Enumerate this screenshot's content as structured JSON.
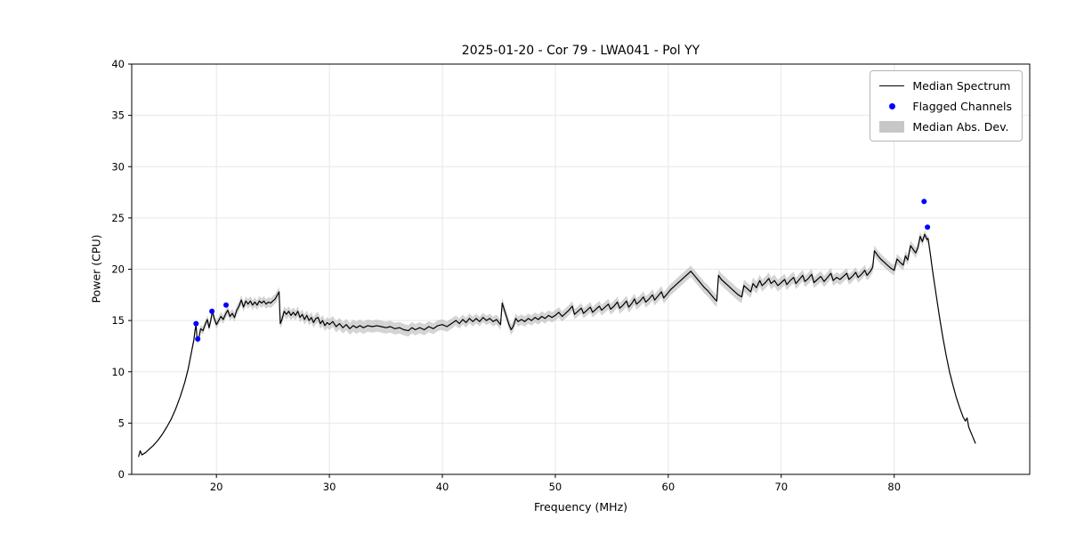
{
  "figure": {
    "background": "#ffffff"
  },
  "chart_data": {
    "type": "line",
    "title": "2025-01-20 - Cor 79 - LWA041 - Pol YY",
    "xlabel": "Frequency (MHz)",
    "ylabel": "Power (CPU)",
    "xlim": [
      12.5,
      92.0
    ],
    "ylim": [
      0,
      40
    ],
    "xticks": [
      20,
      30,
      40,
      50,
      60,
      70,
      80
    ],
    "yticks": [
      0,
      5,
      10,
      15,
      20,
      25,
      30,
      35,
      40
    ],
    "grid": true,
    "legend": {
      "position": "upper right",
      "entries": [
        {
          "label": "Median Spectrum",
          "marker": "line"
        },
        {
          "label": "Flagged Channels",
          "marker": "dot"
        },
        {
          "label": "Median Abs. Dev.",
          "marker": "patch"
        }
      ]
    },
    "colors": {
      "line": "#000000",
      "flagged": "#0000ff",
      "band": "#b8b8b8",
      "grid": "#e7e7e7"
    },
    "series": {
      "median_spectrum": [
        [
          13.1,
          1.7
        ],
        [
          13.25,
          2.3
        ],
        [
          13.4,
          1.9
        ],
        [
          13.7,
          2.1
        ],
        [
          14.0,
          2.4
        ],
        [
          14.4,
          2.8
        ],
        [
          14.8,
          3.3
        ],
        [
          15.2,
          3.9
        ],
        [
          15.6,
          4.6
        ],
        [
          16.0,
          5.4
        ],
        [
          16.4,
          6.4
        ],
        [
          16.8,
          7.6
        ],
        [
          17.2,
          9.0
        ],
        [
          17.5,
          10.3
        ],
        [
          17.8,
          12.0
        ],
        [
          18.0,
          13.1
        ],
        [
          18.1,
          14.0
        ],
        [
          18.2,
          14.6
        ],
        [
          18.3,
          13.0
        ],
        [
          18.45,
          13.3
        ],
        [
          18.6,
          14.2
        ],
        [
          18.8,
          14.0
        ],
        [
          19.0,
          14.6
        ],
        [
          19.2,
          15.1
        ],
        [
          19.35,
          14.3
        ],
        [
          19.5,
          15.0
        ],
        [
          19.65,
          15.9
        ],
        [
          19.8,
          15.2
        ],
        [
          20.0,
          14.6
        ],
        [
          20.2,
          15.0
        ],
        [
          20.4,
          15.4
        ],
        [
          20.6,
          15.1
        ],
        [
          20.8,
          15.6
        ],
        [
          21.0,
          16.0
        ],
        [
          21.2,
          15.4
        ],
        [
          21.4,
          15.7
        ],
        [
          21.6,
          15.3
        ],
        [
          21.8,
          16.0
        ],
        [
          22.0,
          16.4
        ],
        [
          22.2,
          17.0
        ],
        [
          22.4,
          16.3
        ],
        [
          22.6,
          16.9
        ],
        [
          22.8,
          16.6
        ],
        [
          23.0,
          16.9
        ],
        [
          23.2,
          16.5
        ],
        [
          23.4,
          16.8
        ],
        [
          23.6,
          16.5
        ],
        [
          23.8,
          16.9
        ],
        [
          24.0,
          16.7
        ],
        [
          24.2,
          16.9
        ],
        [
          24.4,
          16.6
        ],
        [
          24.6,
          16.8
        ],
        [
          24.8,
          16.7
        ],
        [
          25.0,
          16.9
        ],
        [
          25.2,
          17.1
        ],
        [
          25.4,
          17.5
        ],
        [
          25.55,
          17.8
        ],
        [
          25.65,
          14.7
        ],
        [
          25.8,
          15.1
        ],
        [
          26.0,
          15.9
        ],
        [
          26.2,
          15.6
        ],
        [
          26.4,
          15.9
        ],
        [
          26.6,
          15.5
        ],
        [
          26.8,
          15.8
        ],
        [
          27.0,
          15.5
        ],
        [
          27.2,
          15.9
        ],
        [
          27.4,
          15.3
        ],
        [
          27.6,
          15.6
        ],
        [
          27.8,
          15.1
        ],
        [
          28.0,
          15.5
        ],
        [
          28.2,
          15.0
        ],
        [
          28.4,
          15.3
        ],
        [
          28.6,
          14.8
        ],
        [
          28.8,
          15.2
        ],
        [
          29.0,
          15.3
        ],
        [
          29.2,
          14.7
        ],
        [
          29.4,
          15.0
        ],
        [
          29.6,
          14.5
        ],
        [
          29.8,
          14.8
        ],
        [
          30.0,
          14.6
        ],
        [
          30.3,
          14.9
        ],
        [
          30.6,
          14.4
        ],
        [
          30.9,
          14.7
        ],
        [
          31.2,
          14.3
        ],
        [
          31.5,
          14.6
        ],
        [
          31.8,
          14.2
        ],
        [
          32.1,
          14.5
        ],
        [
          32.4,
          14.3
        ],
        [
          32.7,
          14.5
        ],
        [
          33.0,
          14.3
        ],
        [
          33.4,
          14.5
        ],
        [
          33.8,
          14.4
        ],
        [
          34.2,
          14.5
        ],
        [
          34.6,
          14.4
        ],
        [
          35.0,
          14.3
        ],
        [
          35.4,
          14.4
        ],
        [
          35.8,
          14.2
        ],
        [
          36.2,
          14.3
        ],
        [
          36.6,
          14.1
        ],
        [
          37.0,
          14.0
        ],
        [
          37.3,
          14.3
        ],
        [
          37.6,
          14.1
        ],
        [
          38.0,
          14.3
        ],
        [
          38.4,
          14.1
        ],
        [
          38.8,
          14.4
        ],
        [
          39.2,
          14.2
        ],
        [
          39.6,
          14.5
        ],
        [
          40.0,
          14.6
        ],
        [
          40.4,
          14.4
        ],
        [
          40.8,
          14.7
        ],
        [
          41.2,
          15.0
        ],
        [
          41.5,
          14.7
        ],
        [
          41.8,
          15.1
        ],
        [
          42.1,
          14.8
        ],
        [
          42.4,
          15.2
        ],
        [
          42.7,
          14.9
        ],
        [
          43.0,
          15.2
        ],
        [
          43.3,
          14.9
        ],
        [
          43.6,
          15.3
        ],
        [
          43.9,
          15.0
        ],
        [
          44.2,
          15.2
        ],
        [
          44.5,
          14.9
        ],
        [
          44.8,
          15.1
        ],
        [
          45.0,
          14.8
        ],
        [
          45.15,
          14.6
        ],
        [
          45.3,
          16.7
        ],
        [
          45.5,
          16.0
        ],
        [
          45.7,
          15.3
        ],
        [
          45.9,
          14.6
        ],
        [
          46.1,
          14.1
        ],
        [
          46.3,
          14.5
        ],
        [
          46.5,
          15.2
        ],
        [
          46.7,
          14.9
        ],
        [
          47.0,
          15.1
        ],
        [
          47.3,
          14.9
        ],
        [
          47.6,
          15.2
        ],
        [
          47.9,
          15.0
        ],
        [
          48.2,
          15.3
        ],
        [
          48.5,
          15.1
        ],
        [
          48.8,
          15.4
        ],
        [
          49.1,
          15.2
        ],
        [
          49.4,
          15.5
        ],
        [
          49.7,
          15.3
        ],
        [
          50.0,
          15.5
        ],
        [
          50.3,
          15.8
        ],
        [
          50.6,
          15.4
        ],
        [
          50.9,
          15.7
        ],
        [
          51.2,
          16.0
        ],
        [
          51.5,
          16.4
        ],
        [
          51.7,
          15.6
        ],
        [
          52.0,
          15.9
        ],
        [
          52.3,
          16.2
        ],
        [
          52.5,
          15.7
        ],
        [
          52.8,
          16.0
        ],
        [
          53.1,
          16.3
        ],
        [
          53.3,
          15.8
        ],
        [
          53.6,
          16.1
        ],
        [
          53.9,
          16.4
        ],
        [
          54.1,
          16.0
        ],
        [
          54.4,
          16.3
        ],
        [
          54.7,
          16.6
        ],
        [
          54.9,
          16.1
        ],
        [
          55.2,
          16.4
        ],
        [
          55.5,
          16.8
        ],
        [
          55.7,
          16.2
        ],
        [
          56.0,
          16.5
        ],
        [
          56.3,
          16.9
        ],
        [
          56.5,
          16.3
        ],
        [
          56.8,
          16.7
        ],
        [
          57.0,
          17.1
        ],
        [
          57.2,
          16.6
        ],
        [
          57.5,
          16.9
        ],
        [
          57.8,
          17.3
        ],
        [
          58.0,
          16.8
        ],
        [
          58.3,
          17.1
        ],
        [
          58.6,
          17.5
        ],
        [
          58.8,
          17.0
        ],
        [
          59.1,
          17.4
        ],
        [
          59.4,
          17.8
        ],
        [
          59.6,
          17.2
        ],
        [
          59.9,
          17.6
        ],
        [
          60.2,
          18.0
        ],
        [
          60.5,
          18.3
        ],
        [
          60.8,
          18.6
        ],
        [
          61.1,
          18.9
        ],
        [
          61.4,
          19.2
        ],
        [
          61.7,
          19.5
        ],
        [
          62.0,
          19.8
        ],
        [
          62.3,
          19.4
        ],
        [
          62.6,
          19.0
        ],
        [
          62.9,
          18.6
        ],
        [
          63.2,
          18.2
        ],
        [
          63.5,
          17.9
        ],
        [
          63.8,
          17.5
        ],
        [
          64.1,
          17.1
        ],
        [
          64.3,
          16.9
        ],
        [
          64.45,
          19.4
        ],
        [
          64.7,
          19.0
        ],
        [
          65.0,
          18.7
        ],
        [
          65.3,
          18.4
        ],
        [
          65.6,
          18.1
        ],
        [
          65.9,
          17.8
        ],
        [
          66.2,
          17.5
        ],
        [
          66.5,
          17.3
        ],
        [
          66.7,
          18.4
        ],
        [
          67.0,
          18.1
        ],
        [
          67.3,
          17.8
        ],
        [
          67.5,
          18.6
        ],
        [
          67.8,
          18.2
        ],
        [
          68.1,
          18.9
        ],
        [
          68.3,
          18.4
        ],
        [
          68.6,
          18.7
        ],
        [
          68.9,
          19.1
        ],
        [
          69.1,
          18.6
        ],
        [
          69.4,
          18.9
        ],
        [
          69.7,
          18.4
        ],
        [
          70.0,
          18.7
        ],
        [
          70.3,
          19.0
        ],
        [
          70.5,
          18.5
        ],
        [
          70.8,
          18.9
        ],
        [
          71.1,
          19.2
        ],
        [
          71.3,
          18.6
        ],
        [
          71.6,
          19.0
        ],
        [
          71.9,
          19.4
        ],
        [
          72.1,
          18.8
        ],
        [
          72.4,
          19.1
        ],
        [
          72.7,
          19.5
        ],
        [
          72.9,
          18.7
        ],
        [
          73.2,
          19.0
        ],
        [
          73.5,
          19.3
        ],
        [
          73.8,
          18.8
        ],
        [
          74.1,
          19.2
        ],
        [
          74.4,
          19.6
        ],
        [
          74.6,
          18.9
        ],
        [
          74.9,
          19.2
        ],
        [
          75.2,
          19.0
        ],
        [
          75.5,
          19.3
        ],
        [
          75.8,
          19.6
        ],
        [
          76.0,
          19.0
        ],
        [
          76.3,
          19.3
        ],
        [
          76.6,
          19.7
        ],
        [
          76.8,
          19.2
        ],
        [
          77.1,
          19.5
        ],
        [
          77.4,
          19.9
        ],
        [
          77.6,
          19.4
        ],
        [
          77.9,
          19.8
        ],
        [
          78.1,
          20.2
        ],
        [
          78.25,
          21.8
        ],
        [
          78.5,
          21.4
        ],
        [
          78.8,
          21.0
        ],
        [
          79.1,
          20.7
        ],
        [
          79.4,
          20.4
        ],
        [
          79.7,
          20.1
        ],
        [
          80.0,
          19.9
        ],
        [
          80.25,
          21.0
        ],
        [
          80.5,
          20.7
        ],
        [
          80.8,
          20.4
        ],
        [
          81.0,
          21.3
        ],
        [
          81.2,
          20.9
        ],
        [
          81.45,
          22.3
        ],
        [
          81.7,
          21.9
        ],
        [
          81.9,
          21.6
        ],
        [
          82.1,
          22.1
        ],
        [
          82.3,
          23.2
        ],
        [
          82.5,
          22.7
        ],
        [
          82.7,
          23.4
        ],
        [
          82.9,
          22.9
        ],
        [
          83.0,
          23.0
        ],
        [
          83.2,
          21.5
        ],
        [
          83.4,
          19.8
        ],
        [
          83.7,
          17.6
        ],
        [
          84.0,
          15.4
        ],
        [
          84.3,
          13.4
        ],
        [
          84.6,
          11.6
        ],
        [
          84.9,
          10.0
        ],
        [
          85.2,
          8.7
        ],
        [
          85.5,
          7.5
        ],
        [
          85.8,
          6.5
        ],
        [
          86.1,
          5.6
        ],
        [
          86.3,
          5.2
        ],
        [
          86.45,
          5.5
        ],
        [
          86.6,
          4.6
        ],
        [
          86.9,
          3.8
        ],
        [
          87.2,
          3.0
        ]
      ]
    },
    "flagged_channels": [
      [
        18.2,
        14.7
      ],
      [
        18.35,
        13.2
      ],
      [
        19.6,
        15.9
      ],
      [
        20.85,
        16.5
      ],
      [
        82.65,
        26.6
      ],
      [
        82.95,
        24.1
      ]
    ],
    "mad_profile": [
      [
        13.1,
        0.05
      ],
      [
        17.0,
        0.1
      ],
      [
        18.0,
        0.3
      ],
      [
        19.0,
        0.4
      ],
      [
        22.0,
        0.45
      ],
      [
        28.0,
        0.5
      ],
      [
        33.0,
        0.6
      ],
      [
        38.0,
        0.55
      ],
      [
        44.0,
        0.45
      ],
      [
        45.5,
        0.5
      ],
      [
        52.0,
        0.5
      ],
      [
        58.0,
        0.55
      ],
      [
        62.0,
        0.55
      ],
      [
        66.0,
        0.6
      ],
      [
        72.0,
        0.55
      ],
      [
        78.0,
        0.5
      ],
      [
        82.0,
        0.5
      ],
      [
        83.0,
        0.35
      ],
      [
        84.0,
        0.12
      ],
      [
        87.2,
        0.05
      ]
    ]
  }
}
